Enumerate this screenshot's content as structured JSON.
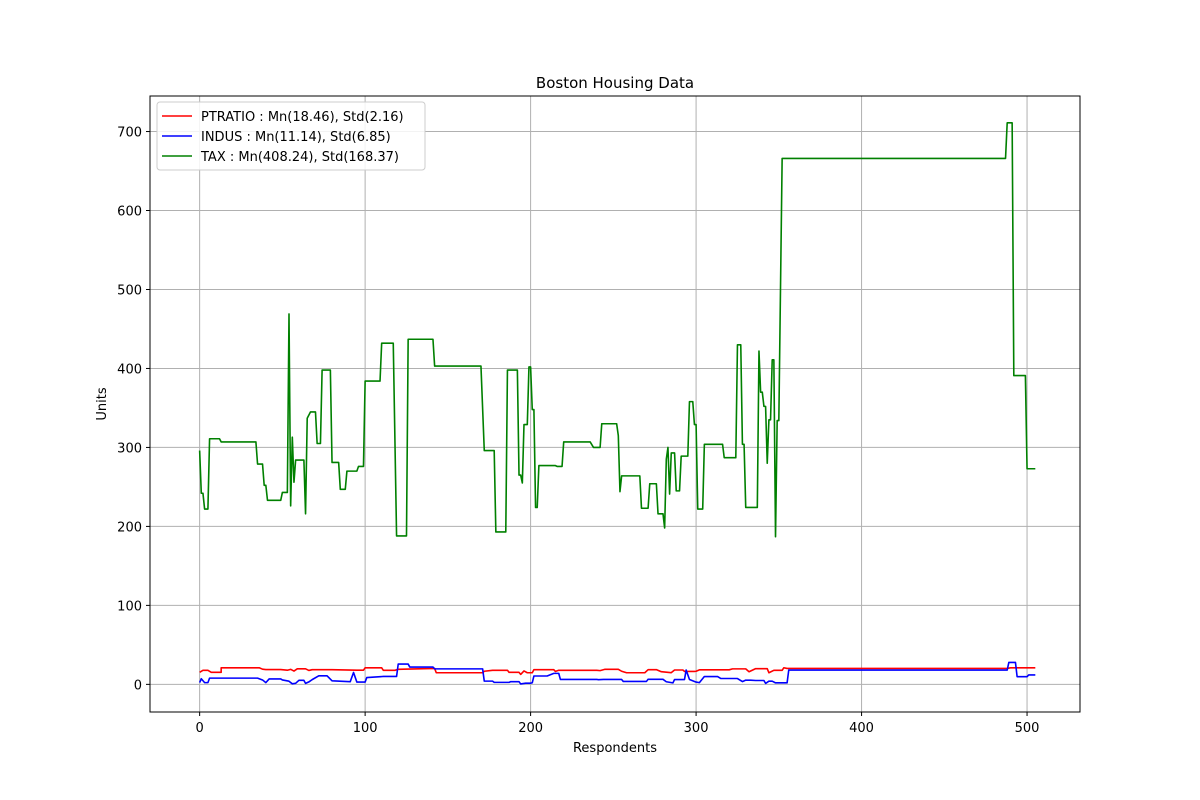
{
  "chart_data": {
    "type": "line",
    "title": "Boston Housing Data",
    "xlabel": "Respondents",
    "ylabel": "Units",
    "xlim": [
      -30,
      532
    ],
    "ylim": [
      -35,
      745
    ],
    "xticks": [
      0,
      100,
      200,
      300,
      400,
      500
    ],
    "yticks": [
      0,
      100,
      200,
      300,
      400,
      500,
      600,
      700
    ],
    "grid": true,
    "legend_position": "top-left",
    "series": [
      {
        "name": "PTRATIO : Mn(18.46), Std(2.16)",
        "color": "#ff0000",
        "points": [
          [
            0,
            15.3
          ],
          [
            2,
            17.8
          ],
          [
            5,
            17.8
          ],
          [
            7,
            15.2
          ],
          [
            13,
            15.2
          ],
          [
            13,
            21.0
          ],
          [
            36,
            21.0
          ],
          [
            38,
            19.2
          ],
          [
            40,
            18.7
          ],
          [
            49,
            18.7
          ],
          [
            53,
            17.9
          ],
          [
            55,
            19.0
          ],
          [
            57,
            16.8
          ],
          [
            59,
            19.7
          ],
          [
            64,
            19.7
          ],
          [
            66,
            17.6
          ],
          [
            68,
            18.6
          ],
          [
            80,
            18.6
          ],
          [
            95,
            17.9
          ],
          [
            99,
            17.9
          ],
          [
            100,
            21.0
          ],
          [
            110,
            21.0
          ],
          [
            111,
            17.8
          ],
          [
            118,
            17.8
          ],
          [
            120,
            19.1
          ],
          [
            142,
            20.2
          ],
          [
            143,
            14.7
          ],
          [
            171,
            14.7
          ],
          [
            172,
            16.6
          ],
          [
            177,
            17.8
          ],
          [
            186,
            17.8
          ],
          [
            187,
            15.2
          ],
          [
            193,
            15.2
          ],
          [
            194,
            12.6
          ],
          [
            196,
            17.0
          ],
          [
            198,
            14.7
          ],
          [
            201,
            14.7
          ],
          [
            202,
            18.6
          ],
          [
            214,
            18.6
          ],
          [
            215,
            16.4
          ],
          [
            217,
            17.8
          ],
          [
            240,
            17.8
          ],
          [
            242,
            17.4
          ],
          [
            245,
            19.1
          ],
          [
            253,
            19.1
          ],
          [
            255,
            16.6
          ],
          [
            258,
            14.7
          ],
          [
            269,
            14.7
          ],
          [
            271,
            18.6
          ],
          [
            276,
            18.6
          ],
          [
            279,
            16.0
          ],
          [
            285,
            14.8
          ],
          [
            287,
            18.2
          ],
          [
            292,
            18.2
          ],
          [
            293,
            16.4
          ],
          [
            299,
            16.4
          ],
          [
            300,
            16.6
          ],
          [
            302,
            18.4
          ],
          [
            320,
            18.4
          ],
          [
            322,
            19.6
          ],
          [
            330,
            19.6
          ],
          [
            332,
            16.0
          ],
          [
            336,
            19.9
          ],
          [
            343,
            19.9
          ],
          [
            344,
            14.7
          ],
          [
            347,
            17.8
          ],
          [
            352,
            17.8
          ],
          [
            353,
            21.0
          ],
          [
            355,
            20.2
          ],
          [
            488,
            20.2
          ],
          [
            490,
            20.9
          ],
          [
            500,
            20.9
          ],
          [
            502,
            21.0
          ],
          [
            505,
            21.0
          ]
        ]
      },
      {
        "name": "INDUS : Mn(11.14), Std(6.85)",
        "color": "#0000ff",
        "points": [
          [
            0,
            2.3
          ],
          [
            1,
            7.1
          ],
          [
            3,
            2.2
          ],
          [
            5,
            2.2
          ],
          [
            6,
            7.9
          ],
          [
            35,
            7.9
          ],
          [
            38,
            5.6
          ],
          [
            40,
            2.2
          ],
          [
            42,
            6.9
          ],
          [
            49,
            6.9
          ],
          [
            50,
            5.6
          ],
          [
            54,
            4.0
          ],
          [
            56,
            0.7
          ],
          [
            58,
            1.3
          ],
          [
            60,
            5.1
          ],
          [
            63,
            5.1
          ],
          [
            64,
            1.2
          ],
          [
            66,
            3.1
          ],
          [
            68,
            6.0
          ],
          [
            72,
            10.8
          ],
          [
            77,
            10.8
          ],
          [
            80,
            4.5
          ],
          [
            91,
            3.4
          ],
          [
            93,
            15.0
          ],
          [
            95,
            2.9
          ],
          [
            100,
            2.9
          ],
          [
            101,
            8.6
          ],
          [
            111,
            10.0
          ],
          [
            119,
            10.0
          ],
          [
            120,
            25.7
          ],
          [
            126,
            25.7
          ],
          [
            127,
            21.9
          ],
          [
            141,
            21.9
          ],
          [
            142,
            19.6
          ],
          [
            171,
            19.6
          ],
          [
            172,
            4.1
          ],
          [
            177,
            4.1
          ],
          [
            178,
            2.5
          ],
          [
            187,
            2.5
          ],
          [
            188,
            3.4
          ],
          [
            193,
            3.4
          ],
          [
            194,
            0.5
          ],
          [
            197,
            1.5
          ],
          [
            200,
            1.5
          ],
          [
            201,
            2.0
          ],
          [
            202,
            10.6
          ],
          [
            210,
            10.6
          ],
          [
            214,
            13.9
          ],
          [
            217,
            13.9
          ],
          [
            218,
            6.2
          ],
          [
            240,
            6.2
          ],
          [
            241,
            5.9
          ],
          [
            244,
            6.2
          ],
          [
            255,
            6.2
          ],
          [
            256,
            3.7
          ],
          [
            270,
            3.7
          ],
          [
            271,
            6.4
          ],
          [
            280,
            6.4
          ],
          [
            282,
            3.3
          ],
          [
            286,
            1.9
          ],
          [
            287,
            6.1
          ],
          [
            293,
            6.1
          ],
          [
            294,
            18.1
          ],
          [
            296,
            6.1
          ],
          [
            300,
            2.9
          ],
          [
            302,
            2.2
          ],
          [
            305,
            9.9
          ],
          [
            313,
            9.9
          ],
          [
            315,
            7.4
          ],
          [
            325,
            7.4
          ],
          [
            328,
            3.5
          ],
          [
            330,
            5.3
          ],
          [
            333,
            5.3
          ],
          [
            336,
            4.9
          ],
          [
            341,
            4.9
          ],
          [
            342,
            1.2
          ],
          [
            344,
            4.0
          ],
          [
            346,
            4.0
          ],
          [
            348,
            1.9
          ],
          [
            355,
            1.9
          ],
          [
            356,
            18.1
          ],
          [
            488,
            18.1
          ],
          [
            489,
            27.7
          ],
          [
            493,
            27.7
          ],
          [
            494,
            9.7
          ],
          [
            500,
            9.7
          ],
          [
            501,
            11.9
          ],
          [
            505,
            11.9
          ]
        ]
      },
      {
        "name": "TAX : Mn(408.24), Std(168.37)",
        "color": "#008000",
        "points": [
          [
            0,
            296
          ],
          [
            1,
            242
          ],
          [
            2,
            242
          ],
          [
            3,
            222
          ],
          [
            5,
            222
          ],
          [
            6,
            311
          ],
          [
            12,
            311
          ],
          [
            13,
            307
          ],
          [
            34,
            307
          ],
          [
            35,
            279
          ],
          [
            38,
            279
          ],
          [
            39,
            252
          ],
          [
            40,
            252
          ],
          [
            41,
            233
          ],
          [
            49,
            233
          ],
          [
            50,
            243
          ],
          [
            53,
            243
          ],
          [
            54,
            469
          ],
          [
            55,
            226
          ],
          [
            56,
            313
          ],
          [
            57,
            256
          ],
          [
            58,
            284
          ],
          [
            63,
            284
          ],
          [
            64,
            216
          ],
          [
            65,
            337
          ],
          [
            67,
            345
          ],
          [
            70,
            345
          ],
          [
            71,
            305
          ],
          [
            73,
            305
          ],
          [
            74,
            398
          ],
          [
            79,
            398
          ],
          [
            80,
            281
          ],
          [
            84,
            281
          ],
          [
            85,
            247
          ],
          [
            88,
            247
          ],
          [
            89,
            270
          ],
          [
            95,
            270
          ],
          [
            96,
            276
          ],
          [
            99,
            276
          ],
          [
            100,
            384
          ],
          [
            109,
            384
          ],
          [
            110,
            432
          ],
          [
            117,
            432
          ],
          [
            119,
            188
          ],
          [
            125,
            188
          ],
          [
            126,
            437
          ],
          [
            141,
            437
          ],
          [
            142,
            403
          ],
          [
            170,
            403
          ],
          [
            172,
            296
          ],
          [
            178,
            296
          ],
          [
            179,
            193
          ],
          [
            185,
            193
          ],
          [
            186,
            398
          ],
          [
            192,
            398
          ],
          [
            193,
            265
          ],
          [
            194,
            265
          ],
          [
            195,
            255
          ],
          [
            196,
            329
          ],
          [
            198,
            329
          ],
          [
            199,
            402
          ],
          [
            200,
            402
          ],
          [
            201,
            348
          ],
          [
            202,
            348
          ],
          [
            203,
            224
          ],
          [
            204,
            224
          ],
          [
            205,
            277
          ],
          [
            215,
            277
          ],
          [
            216,
            276
          ],
          [
            219,
            276
          ],
          [
            220,
            307
          ],
          [
            236,
            307
          ],
          [
            238,
            300
          ],
          [
            242,
            300
          ],
          [
            243,
            330
          ],
          [
            252,
            330
          ],
          [
            253,
            315
          ],
          [
            254,
            244
          ],
          [
            255,
            264
          ],
          [
            266,
            264
          ],
          [
            267,
            223
          ],
          [
            271,
            223
          ],
          [
            272,
            254
          ],
          [
            276,
            254
          ],
          [
            277,
            216
          ],
          [
            280,
            216
          ],
          [
            281,
            198
          ],
          [
            282,
            285
          ],
          [
            283,
            300
          ],
          [
            284,
            241
          ],
          [
            285,
            293
          ],
          [
            287,
            293
          ],
          [
            288,
            245
          ],
          [
            290,
            245
          ],
          [
            291,
            289
          ],
          [
            295,
            289
          ],
          [
            296,
            358
          ],
          [
            298,
            358
          ],
          [
            299,
            329
          ],
          [
            300,
            329
          ],
          [
            301,
            222
          ],
          [
            304,
            222
          ],
          [
            305,
            304
          ],
          [
            316,
            304
          ],
          [
            317,
            287
          ],
          [
            324,
            287
          ],
          [
            325,
            430
          ],
          [
            327,
            430
          ],
          [
            328,
            304
          ],
          [
            329,
            304
          ],
          [
            330,
            224
          ],
          [
            337,
            224
          ],
          [
            338,
            422
          ],
          [
            339,
            370
          ],
          [
            340,
            370
          ],
          [
            341,
            352
          ],
          [
            342,
            352
          ],
          [
            343,
            280
          ],
          [
            344,
            335
          ],
          [
            345,
            335
          ],
          [
            346,
            411
          ],
          [
            347,
            411
          ],
          [
            348,
            187
          ],
          [
            349,
            334
          ],
          [
            350,
            334
          ],
          [
            352,
            666
          ],
          [
            487,
            666
          ],
          [
            488,
            711
          ],
          [
            491,
            711
          ],
          [
            492,
            391
          ],
          [
            499,
            391
          ],
          [
            500,
            273
          ],
          [
            505,
            273
          ]
        ]
      }
    ]
  }
}
